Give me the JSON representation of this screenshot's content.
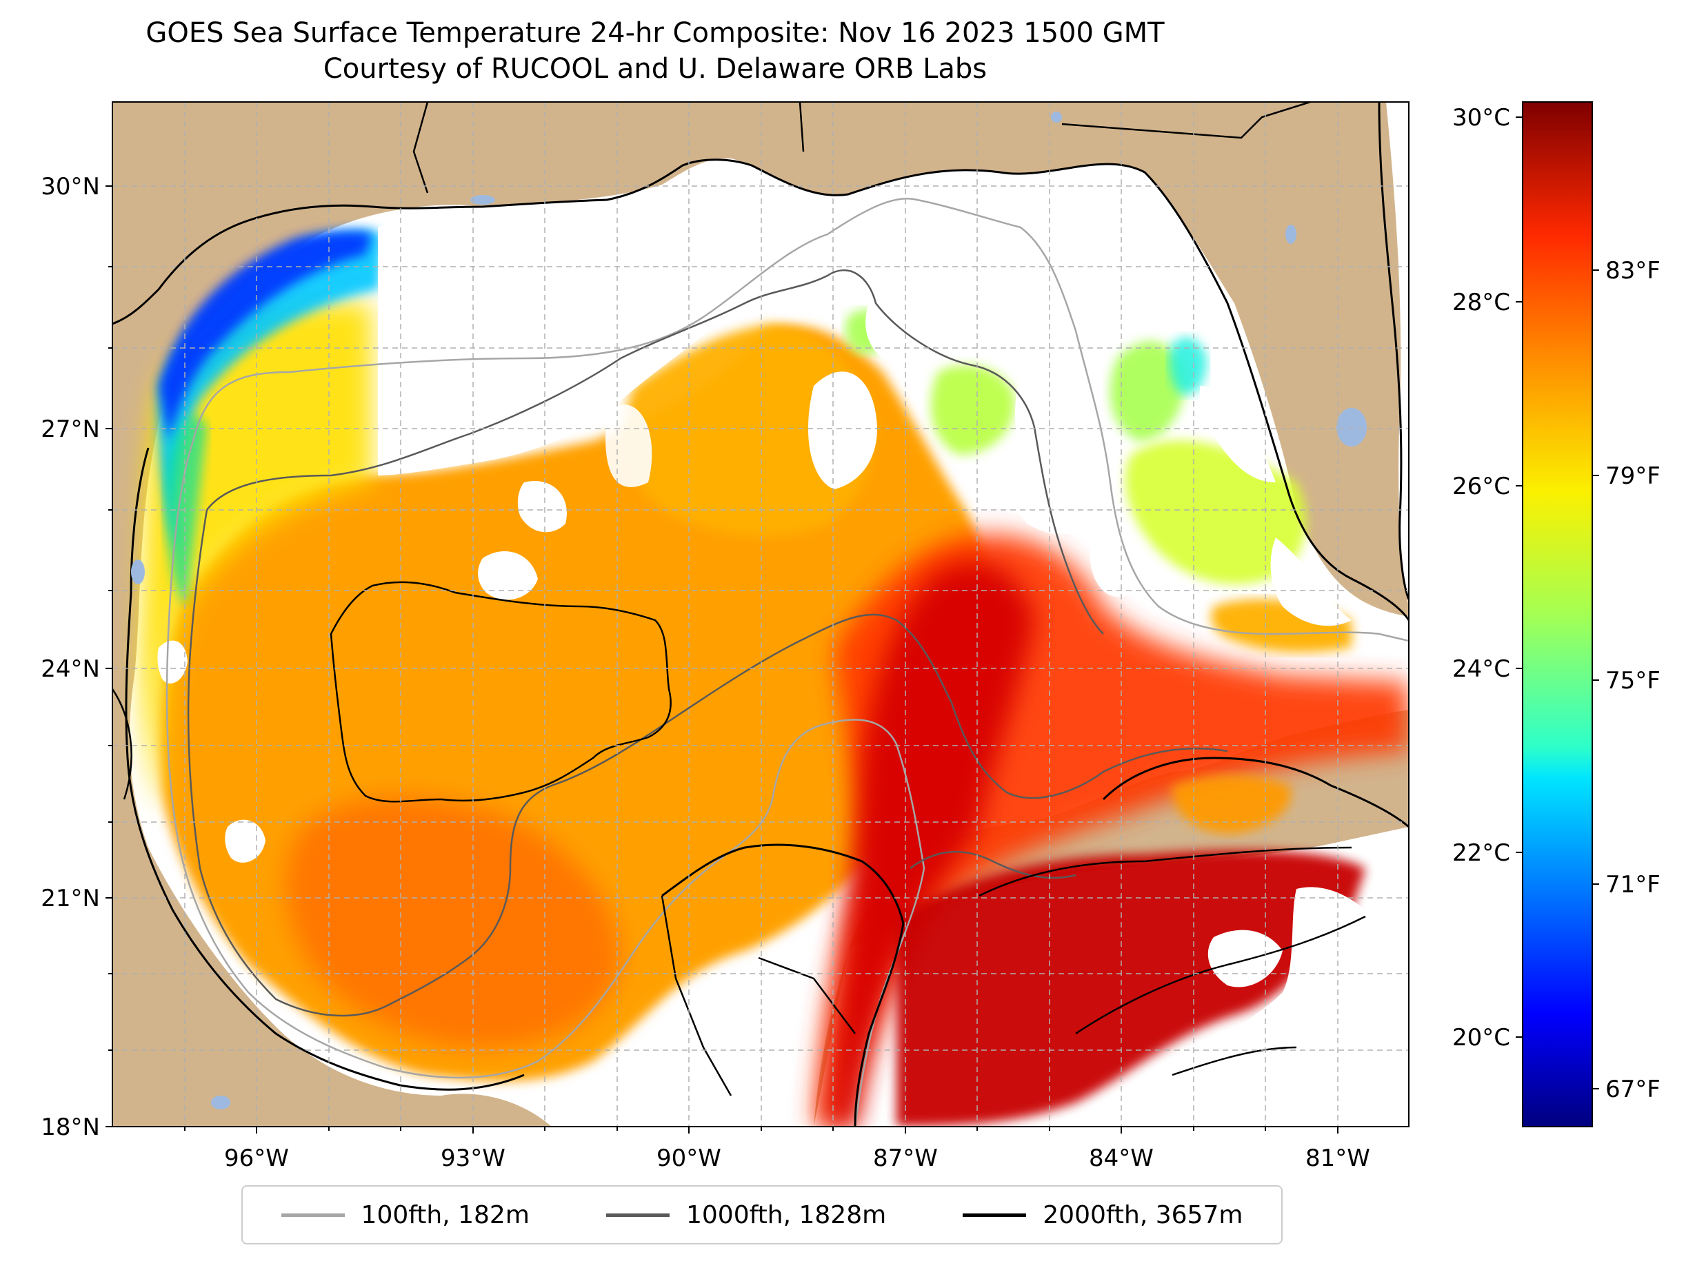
{
  "title": {
    "line1": "GOES Sea Surface Temperature 24-hr Composite: Nov 16 2023 1500 GMT",
    "line2": "Courtesy of RUCOOL and U. Delaware ORB Labs"
  },
  "map": {
    "lat_ticks": [
      "30°N",
      "27°N",
      "24°N",
      "21°N",
      "18°N"
    ],
    "lon_ticks": [
      "96°W",
      "93°W",
      "90°W",
      "87°W",
      "84°W",
      "81°W"
    ],
    "extent": {
      "lon_min": -98.1,
      "lon_max": -80.2,
      "lat_min": 18.0,
      "lat_max": 31.0
    },
    "colors": {
      "land": "#d2b48c",
      "water_nodata": "#ffffff",
      "lakes": "#9db9e0",
      "grid": "#b0b0b0"
    }
  },
  "colorbar": {
    "celsius_ticks": [
      "30°C",
      "28°C",
      "26°C",
      "24°C",
      "22°C",
      "20°C"
    ],
    "fahrenheit_ticks": [
      "83°F",
      "79°F",
      "75°F",
      "71°F",
      "67°F"
    ],
    "range_celsius": [
      19.0,
      30.2
    ],
    "colormap": "jet"
  },
  "legend": [
    {
      "label": "100fth, 182m",
      "color": "#a6a6a6"
    },
    {
      "label": "1000fth, 1828m",
      "color": "#595959"
    },
    {
      "label": "2000fth, 3657m",
      "color": "#000000"
    }
  ]
}
